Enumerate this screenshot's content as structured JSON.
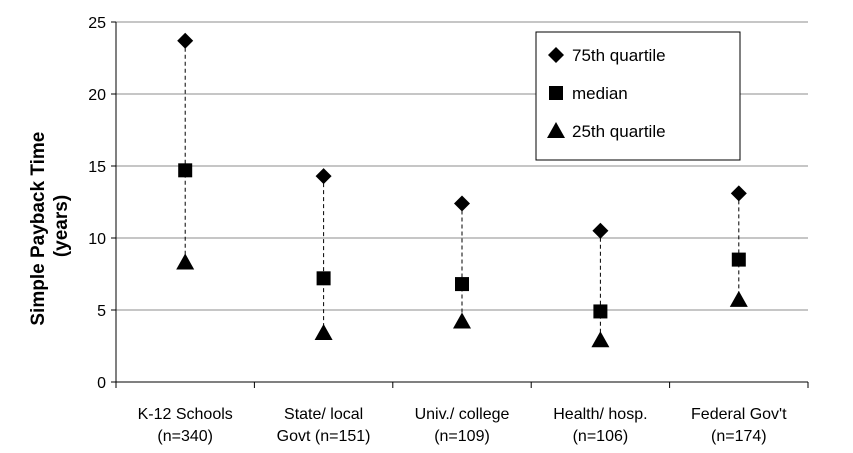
{
  "chart_data": {
    "type": "scatter",
    "title": "",
    "xlabel": "",
    "ylabel_lines": [
      "Simple Payback Time",
      "(years)"
    ],
    "ylim": [
      0,
      25
    ],
    "yticks": [
      0,
      5,
      10,
      15,
      20,
      25
    ],
    "grid": true,
    "legend_position": "top-right",
    "categories": [
      {
        "line1": "K-12 Schools",
        "line2": "(n=340)"
      },
      {
        "line1": "State/ local",
        "line2": "Govt (n=151)"
      },
      {
        "line1": "Univ./ college",
        "line2": "(n=109)"
      },
      {
        "line1": "Health/ hosp.",
        "line2": "(n=106)"
      },
      {
        "line1": "Federal Gov't",
        "line2": "(n=174)"
      }
    ],
    "series": [
      {
        "name": "75th quartile",
        "marker": "diamond",
        "values": [
          23.7,
          14.3,
          12.4,
          10.5,
          13.1
        ]
      },
      {
        "name": "median",
        "marker": "square",
        "values": [
          14.7,
          7.2,
          6.8,
          4.9,
          8.5
        ]
      },
      {
        "name": "25th quartile",
        "marker": "triangle",
        "values": [
          8.3,
          3.4,
          4.2,
          2.9,
          5.7
        ]
      }
    ]
  }
}
